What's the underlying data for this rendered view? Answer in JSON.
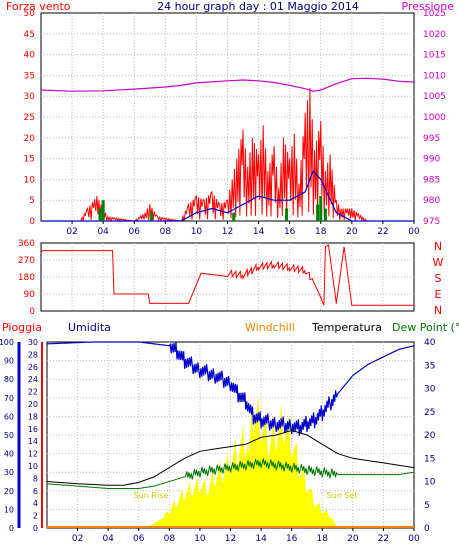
{
  "header": {
    "left_title": "Forza vento",
    "center_title": "24 hour graph day : 01 Maggio 2014",
    "right_title": "Pressione"
  },
  "bottom_header": {
    "pioggia": "Pioggia",
    "umidita": "Umidita",
    "windchill": "Windchill",
    "temperatura": "Temperatura",
    "dewpoint": "Dew Point (°C"
  },
  "x_ticks": [
    "02",
    "04",
    "06",
    "08",
    "10",
    "12",
    "14",
    "16",
    "18",
    "20",
    "22",
    "00"
  ],
  "colors": {
    "frame": "#000000",
    "grid": "#c0c0c0",
    "red": "#ff0000",
    "magenta": "#cc00cc",
    "blue": "#0000cc",
    "green": "#008000",
    "yellow": "#ffff00",
    "orange": "#ff8000",
    "black": "#000000",
    "dewgreen": "#007700",
    "title_blue": "#000080"
  },
  "chart_data": [
    {
      "name": "wind-pressure",
      "type": "line",
      "ylim_left": [
        0,
        50
      ],
      "yticks_left": [
        "50",
        "45",
        "40",
        "35",
        "30",
        "25",
        "20",
        "15",
        "10",
        "5",
        "0"
      ],
      "ylim_right": [
        975,
        1025
      ],
      "yticks_right": [
        "1025",
        "1020",
        "1015",
        "1010",
        "1005",
        "1000",
        "995",
        "990",
        "985",
        "980",
        "975"
      ],
      "x_hours": [
        0,
        24
      ],
      "pressure": {
        "x": [
          0,
          2,
          4,
          6,
          8,
          9,
          10,
          12,
          13,
          14,
          15,
          16,
          17,
          17.5,
          18,
          19,
          20,
          21,
          22,
          23,
          24
        ],
        "y": [
          1006.5,
          1006.2,
          1006.3,
          1006.7,
          1007.2,
          1007.6,
          1008.2,
          1008.7,
          1008.9,
          1008.7,
          1008.3,
          1007.6,
          1006.8,
          1006.2,
          1006.5,
          1008,
          1009.2,
          1009.3,
          1009.1,
          1008.6,
          1008.4
        ]
      },
      "wind_speed_max": {
        "x": [
          0,
          2.5,
          3,
          3.6,
          4,
          4.3,
          6,
          6.7,
          7,
          7.5,
          9,
          9.5,
          10,
          10.5,
          11,
          11.5,
          12,
          12.3,
          12.6,
          13,
          13.3,
          13.6,
          14,
          14.3,
          14.6,
          15,
          15.3,
          15.6,
          16,
          16.3,
          16.6,
          17,
          17.3,
          17.6,
          18,
          18.3,
          18.6,
          19,
          19.3,
          20,
          21,
          22,
          23,
          24
        ],
        "y": [
          0,
          0,
          3,
          6,
          3,
          1,
          0,
          2,
          4,
          1,
          0,
          4,
          6,
          5,
          7,
          4,
          5,
          10,
          15,
          22,
          13,
          20,
          16,
          23,
          12,
          18,
          8,
          20,
          15,
          21,
          9,
          26,
          32,
          17,
          24,
          12,
          16,
          5,
          3,
          3,
          0,
          0,
          0,
          0
        ]
      },
      "wind_speed_avg": {
        "x": [
          0,
          9,
          10,
          11,
          12,
          13,
          13.5,
          14,
          15,
          16,
          17,
          17.5,
          18,
          18.5,
          19,
          20,
          24
        ],
        "y": [
          0,
          0,
          2,
          3,
          2,
          4,
          5,
          6,
          5,
          5,
          7,
          12,
          10,
          6,
          2,
          0,
          0
        ]
      },
      "wind_gust_green": {
        "x": [
          3.8,
          4.0,
          7.1,
          12.4,
          15.8,
          17.8,
          18.0,
          18.3
        ],
        "y": [
          3,
          5,
          2,
          2,
          3,
          4,
          6,
          3
        ]
      }
    },
    {
      "name": "wind-direction",
      "type": "line",
      "ylim": [
        0,
        360
      ],
      "yticks": [
        "360",
        "270",
        "180",
        "90",
        "0"
      ],
      "compass": [
        "N",
        "W",
        "S",
        "E",
        "N"
      ],
      "x": [
        0,
        0.1,
        4.6,
        4.7,
        6.9,
        7.0,
        9.5,
        10.2,
        10.3,
        12,
        13,
        14,
        15,
        16,
        17,
        17.5,
        17.9,
        18.2,
        18.3,
        18.5,
        19,
        19.5,
        20,
        22,
        24
      ],
      "y": [
        310,
        320,
        320,
        90,
        90,
        40,
        40,
        180,
        200,
        200,
        190,
        235,
        245,
        230,
        215,
        160,
        90,
        30,
        340,
        350,
        40,
        340,
        30,
        30,
        30
      ]
    },
    {
      "name": "temperature-humidity",
      "type": "line",
      "ylim_humidity": [
        0,
        100
      ],
      "yticks_humidity": [
        "100",
        "90",
        "80",
        "70",
        "60",
        "50",
        "40",
        "30",
        "20",
        "10",
        "0"
      ],
      "ylim_rain": [
        0,
        30
      ],
      "yticks_rain": [
        "30",
        "28",
        "26",
        "24",
        "22",
        "20",
        "18",
        "16",
        "14",
        "12",
        "10",
        "8",
        "6",
        "4",
        "2",
        "0"
      ],
      "ylim_temp": [
        0,
        40
      ],
      "yticks_temp": [
        "40",
        "35",
        "30",
        "25",
        "20",
        "15",
        "10",
        "5",
        "0"
      ],
      "humidity": {
        "x": [
          0,
          3,
          6,
          7,
          8,
          8.5,
          9,
          10,
          11,
          12,
          12.5,
          13,
          13.5,
          14,
          15,
          16,
          16.5,
          17,
          17.5,
          18,
          19,
          20,
          21,
          22,
          23,
          24
        ],
        "y": [
          99,
          100,
          100,
          99,
          98,
          95,
          90,
          85,
          82,
          78,
          72,
          68,
          60,
          58,
          56,
          55,
          54,
          56,
          58,
          62,
          72,
          82,
          88,
          92,
          96,
          98
        ]
      },
      "temperature": {
        "x": [
          0,
          2,
          4,
          5,
          6,
          7,
          8,
          9,
          10,
          11,
          12,
          13,
          14,
          15,
          16,
          17,
          18,
          19,
          20,
          21,
          22,
          23,
          24
        ],
        "y": [
          10,
          9.5,
          9.2,
          9.2,
          9.8,
          11,
          13,
          15,
          16.5,
          17,
          17.5,
          18,
          19.5,
          20,
          21,
          20,
          18,
          16,
          15,
          14.5,
          14,
          13.5,
          13
        ]
      },
      "dew_point": {
        "x": [
          0,
          2,
          4,
          6,
          7,
          8,
          9,
          10,
          11,
          12,
          13,
          14,
          15,
          16,
          17,
          18,
          19,
          20,
          21,
          22,
          23,
          24
        ],
        "y": [
          9.5,
          9,
          8.5,
          8.5,
          9,
          10,
          11,
          12,
          12.5,
          13,
          13.5,
          14,
          13.5,
          13,
          12.5,
          12,
          11.5,
          11.5,
          11.5,
          11.5,
          11.5,
          12
        ]
      },
      "solar_radiation": {
        "x": [
          0,
          6.5,
          7,
          7.5,
          8,
          8.5,
          9,
          9.5,
          10,
          10.5,
          11,
          11.5,
          12,
          12.5,
          13,
          13.2,
          13.5,
          14,
          14.5,
          15,
          15.5,
          16,
          16.5,
          17,
          17.5,
          18,
          18.5,
          19,
          24
        ],
        "y": [
          0,
          0,
          1,
          2,
          4,
          6,
          8,
          9,
          10,
          9,
          12,
          13,
          15,
          18,
          20,
          22,
          26,
          24,
          20,
          22,
          24,
          20,
          14,
          10,
          6,
          4,
          3,
          0,
          0
        ]
      },
      "rain_baseline": {
        "x": [
          0,
          24
        ],
        "y": [
          0.2,
          0.2
        ]
      },
      "sun_rise_label": "Sun Rise",
      "sun_set_label": "Sun Set"
    }
  ]
}
